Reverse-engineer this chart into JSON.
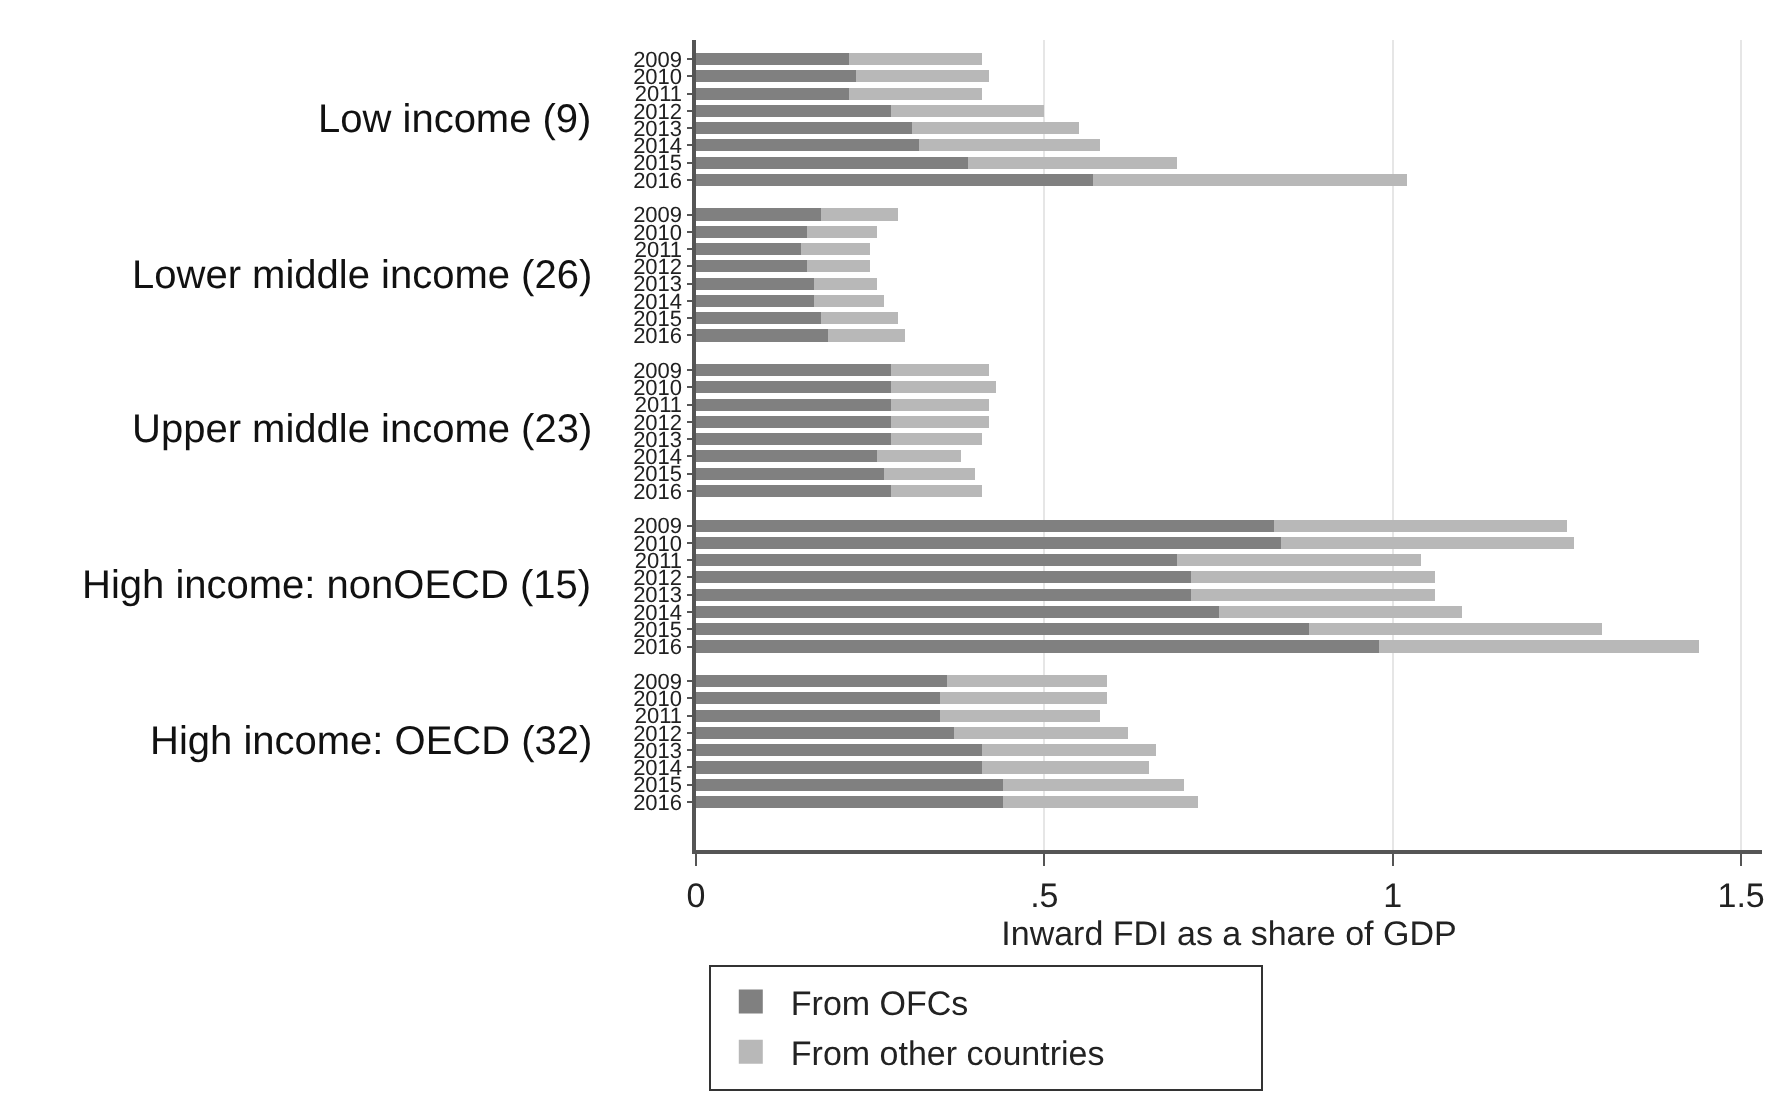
{
  "chart_data": {
    "type": "bar",
    "orientation": "horizontal",
    "stacked": true,
    "xlabel": "Inward FDI as a share of GDP",
    "categories": [
      "2009",
      "2010",
      "2011",
      "2012",
      "2013",
      "2014",
      "2015",
      "2016",
      null,
      "2009",
      "2010",
      "2011",
      "2012",
      "2013",
      "2014",
      "2015",
      "2016",
      null,
      "2009",
      "2010",
      "2011",
      "2012",
      "2013",
      "2014",
      "2015",
      "2016",
      null,
      "2009",
      "2010",
      "2011",
      "2012",
      "2013",
      "2014",
      "2015",
      "2016",
      null,
      "2009",
      "2010",
      "2011",
      "2012",
      "2013",
      "2014",
      "2015",
      "2016"
    ],
    "series": [
      {
        "name": "From OFCs",
        "color": "#808080",
        "values": [
          0.22,
          0.23,
          0.22,
          0.28,
          0.31,
          0.32,
          0.39,
          0.57,
          null,
          0.18,
          0.16,
          0.15,
          0.16,
          0.17,
          0.17,
          0.18,
          0.19,
          null,
          0.28,
          0.28,
          0.28,
          0.28,
          0.28,
          0.26,
          0.27,
          0.28,
          null,
          0.83,
          0.84,
          0.69,
          0.71,
          0.71,
          0.75,
          0.88,
          0.98,
          null,
          0.36,
          0.35,
          0.35,
          0.37,
          0.41,
          0.41,
          0.44,
          0.44
        ]
      },
      {
        "name": "From other countries",
        "color": "#b8b8b8",
        "values": [
          0.19,
          0.19,
          0.19,
          0.22,
          0.24,
          0.26,
          0.3,
          0.45,
          null,
          0.11,
          0.1,
          0.1,
          0.09,
          0.09,
          0.1,
          0.11,
          0.11,
          null,
          0.14,
          0.15,
          0.14,
          0.14,
          0.13,
          0.12,
          0.13,
          0.13,
          null,
          0.42,
          0.42,
          0.35,
          0.35,
          0.35,
          0.35,
          0.42,
          0.46,
          null,
          0.23,
          0.24,
          0.23,
          0.25,
          0.25,
          0.24,
          0.26,
          0.28
        ]
      }
    ],
    "annotations": [
      "Low income (9)",
      "Lower middle income (26)",
      "Upper middle income (23)",
      "High income: nonOECD (15)",
      "High income: OECD (32)"
    ],
    "xlim": [
      0,
      1.53
    ],
    "xticks": [
      0,
      {
        "value": 0.5,
        "label": ".5"
      },
      1,
      1.5
    ],
    "grid": "x",
    "legend": "bottom"
  }
}
